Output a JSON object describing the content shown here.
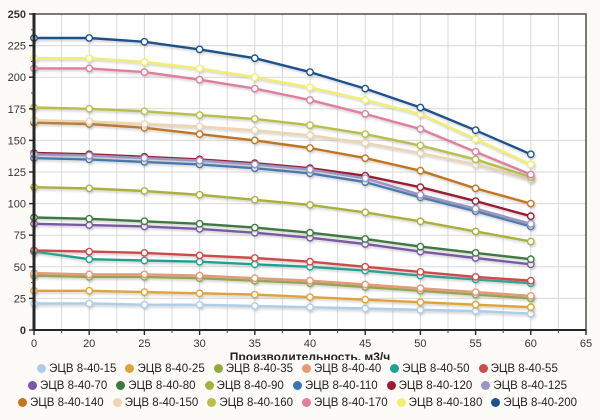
{
  "chart_data": {
    "type": "line",
    "title": "",
    "xlabel": "Производительность, м3/ч",
    "ylabel": "",
    "x_tick_labels": [
      "0",
      "20",
      "25",
      "30",
      "35",
      "40",
      "45",
      "50",
      "55",
      "60",
      "65"
    ],
    "categories": [
      0,
      20,
      25,
      30,
      35,
      40,
      45,
      50,
      55,
      60
    ],
    "y_ticks": [
      0,
      25,
      50,
      75,
      100,
      125,
      150,
      175,
      200,
      225,
      250
    ],
    "ylim": [
      0,
      250
    ],
    "grid": true,
    "legend_position": "bottom",
    "marker": "open-circle",
    "series": [
      {
        "name": "ЭЦВ 8-40-15",
        "color": "#aecde6",
        "values": [
          21,
          21,
          20,
          20,
          19,
          18,
          17,
          16,
          15,
          13
        ]
      },
      {
        "name": "ЭЦВ 8-40-25",
        "color": "#dfa339",
        "values": [
          31,
          31,
          30,
          29,
          28,
          26,
          24,
          22,
          20,
          18
        ]
      },
      {
        "name": "ЭЦВ 8-40-35",
        "color": "#94a83e",
        "values": [
          43,
          42,
          42,
          41,
          39,
          37,
          34,
          31,
          28,
          25
        ]
      },
      {
        "name": "ЭЦВ 8-40-40",
        "color": "#e59a75",
        "values": [
          45,
          44,
          44,
          43,
          41,
          39,
          36,
          33,
          30,
          27
        ]
      },
      {
        "name": "ЭЦВ 8-40-50",
        "color": "#1ea290",
        "values": [
          62,
          56,
          55,
          54,
          52,
          50,
          47,
          43,
          40,
          37
        ]
      },
      {
        "name": "ЭЦВ 8-40-55",
        "color": "#cf4a48",
        "values": [
          63,
          62,
          61,
          59,
          57,
          54,
          50,
          46,
          42,
          39
        ]
      },
      {
        "name": "ЭЦВ 8-40-70",
        "color": "#7a58a5",
        "values": [
          84,
          83,
          82,
          80,
          77,
          73,
          68,
          62,
          57,
          52
        ]
      },
      {
        "name": "ЭЦВ 8-40-80",
        "color": "#3e7a40",
        "values": [
          89,
          88,
          86,
          84,
          81,
          77,
          72,
          66,
          61,
          56
        ]
      },
      {
        "name": "ЭЦВ 8-40-90",
        "color": "#a9b13b",
        "values": [
          113,
          112,
          110,
          107,
          103,
          99,
          93,
          86,
          78,
          70
        ]
      },
      {
        "name": "ЭЦВ 8-40-110",
        "color": "#3a74b4",
        "values": [
          136,
          135,
          133,
          131,
          128,
          124,
          117,
          105,
          94,
          82
        ]
      },
      {
        "name": "ЭЦВ 8-40-120",
        "color": "#9b1d30",
        "values": [
          140,
          139,
          137,
          135,
          132,
          128,
          122,
          113,
          102,
          90
        ]
      },
      {
        "name": "ЭЦВ 8-40-125",
        "color": "#9b95c6",
        "values": [
          139,
          138,
          136,
          134,
          131,
          127,
          120,
          107,
          96,
          84
        ]
      },
      {
        "name": "ЭЦВ 8-40-140",
        "color": "#c2761f",
        "values": [
          164,
          163,
          160,
          155,
          150,
          144,
          136,
          126,
          112,
          100
        ]
      },
      {
        "name": "ЭЦВ 8-40-150",
        "color": "#eed5b0",
        "values": [
          166,
          165,
          163,
          161,
          158,
          154,
          148,
          140,
          131,
          119
        ]
      },
      {
        "name": "ЭЦВ 8-40-160",
        "color": "#b7bf48",
        "values": [
          176,
          175,
          173,
          170,
          167,
          162,
          155,
          146,
          135,
          121
        ]
      },
      {
        "name": "ЭЦВ 8-40-170",
        "color": "#df7f9d",
        "values": [
          207,
          207,
          204,
          198,
          191,
          182,
          171,
          159,
          141,
          123
        ]
      },
      {
        "name": "ЭЦВ 8-40-180",
        "color": "#f2ef6e",
        "values": [
          215,
          215,
          212,
          207,
          200,
          192,
          182,
          171,
          151,
          131
        ]
      },
      {
        "name": "ЭЦВ 8-40-200",
        "color": "#1c518e",
        "values": [
          231,
          231,
          228,
          222,
          215,
          204,
          191,
          176,
          158,
          139
        ]
      }
    ]
  }
}
